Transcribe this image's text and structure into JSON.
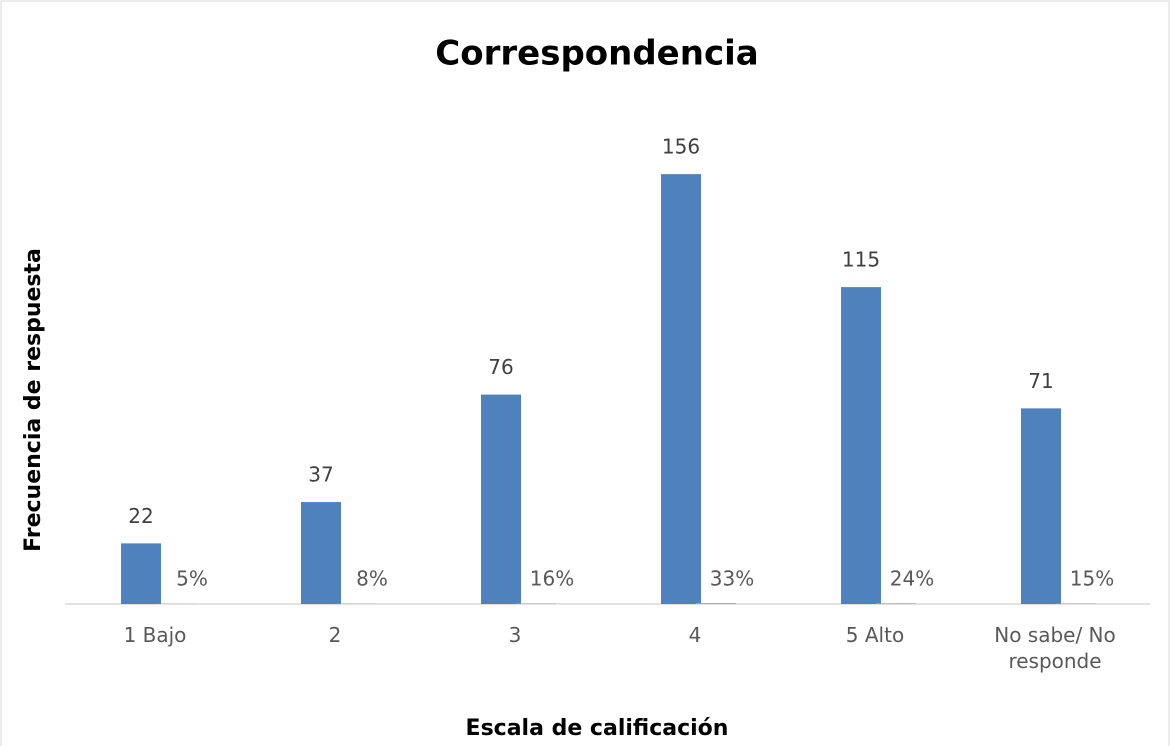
{
  "chart_data": {
    "type": "bar",
    "title": "Correspondencia",
    "x_label": "Escala de calificación",
    "y_label": "Frecuencia de respuesta",
    "categories": [
      "1 Bajo",
      "2",
      "3",
      "4",
      "5 Alto",
      "No sabe/ No responde"
    ],
    "series": [
      {
        "color": "#4f81bd",
        "values": [
          22,
          37,
          76,
          156,
          115,
          71
        ]
      },
      {
        "color": "#a5a5a5",
        "values": [
          0.05,
          0.08,
          0.16,
          0.33,
          0.24,
          0.15
        ],
        "value_labels": [
          "5%",
          "8%",
          "16%",
          "33%",
          "24%",
          "15%"
        ]
      }
    ],
    "ylim": [
      0,
      180
    ]
  }
}
